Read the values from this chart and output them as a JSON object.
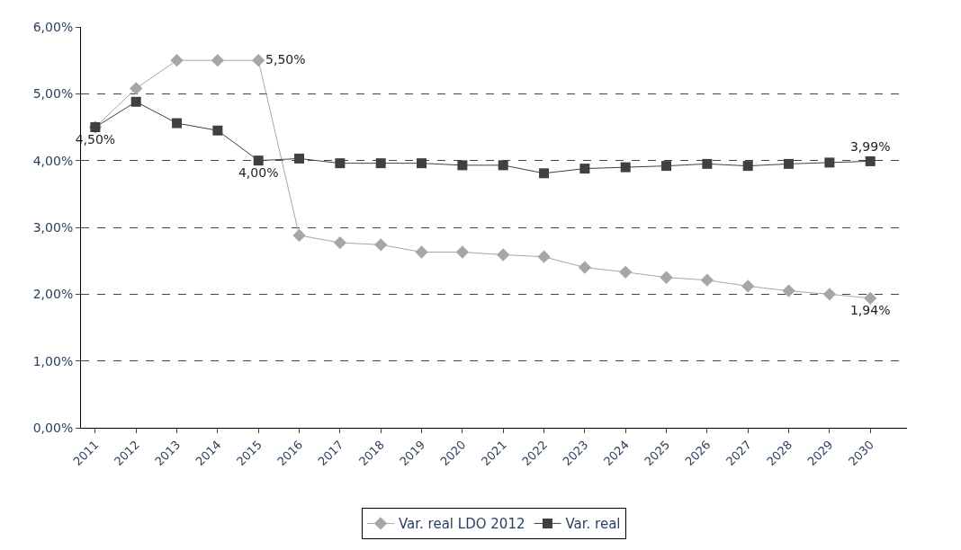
{
  "chart_data": {
    "type": "line",
    "categories": [
      "2011",
      "2012",
      "2013",
      "2014",
      "2015",
      "2016",
      "2017",
      "2018",
      "2019",
      "2020",
      "2021",
      "2022",
      "2023",
      "2024",
      "2025",
      "2026",
      "2027",
      "2028",
      "2029",
      "2030"
    ],
    "series": [
      {
        "name": "Var. real LDO 2012",
        "color": "#a6a6a6",
        "marker": "diamond",
        "values": [
          4.5,
          5.08,
          5.5,
          5.5,
          5.5,
          2.88,
          2.77,
          2.74,
          2.63,
          2.63,
          2.59,
          2.56,
          2.4,
          2.33,
          2.25,
          2.21,
          2.12,
          2.05,
          2.0,
          1.94
        ],
        "value_labels": [
          "4,50%",
          null,
          null,
          null,
          "5,50%",
          null,
          null,
          null,
          null,
          null,
          null,
          null,
          null,
          null,
          null,
          null,
          null,
          null,
          null,
          "1,94%"
        ]
      },
      {
        "name": "Var. real",
        "color": "#404040",
        "marker": "square",
        "values": [
          4.5,
          4.88,
          4.56,
          4.45,
          4.0,
          4.03,
          3.96,
          3.96,
          3.96,
          3.93,
          3.93,
          3.81,
          3.88,
          3.9,
          3.92,
          3.95,
          3.92,
          3.95,
          3.97,
          3.99
        ],
        "value_labels": [
          null,
          null,
          null,
          null,
          "4,00%",
          null,
          null,
          null,
          null,
          null,
          null,
          null,
          null,
          null,
          null,
          null,
          null,
          null,
          null,
          "3,99%"
        ]
      }
    ],
    "ylim": [
      0,
      6
    ],
    "yticks": [
      {
        "value": 0,
        "label": "0,00%"
      },
      {
        "value": 1,
        "label": "1,00%"
      },
      {
        "value": 2,
        "label": "2,00%"
      },
      {
        "value": 3,
        "label": "3,00%"
      },
      {
        "value": 4,
        "label": "4,00%"
      },
      {
        "value": 5,
        "label": "5,00%"
      },
      {
        "value": 6,
        "label": "6,00%"
      }
    ],
    "grid": "y",
    "line_style": "solid",
    "legend": "bottom"
  }
}
